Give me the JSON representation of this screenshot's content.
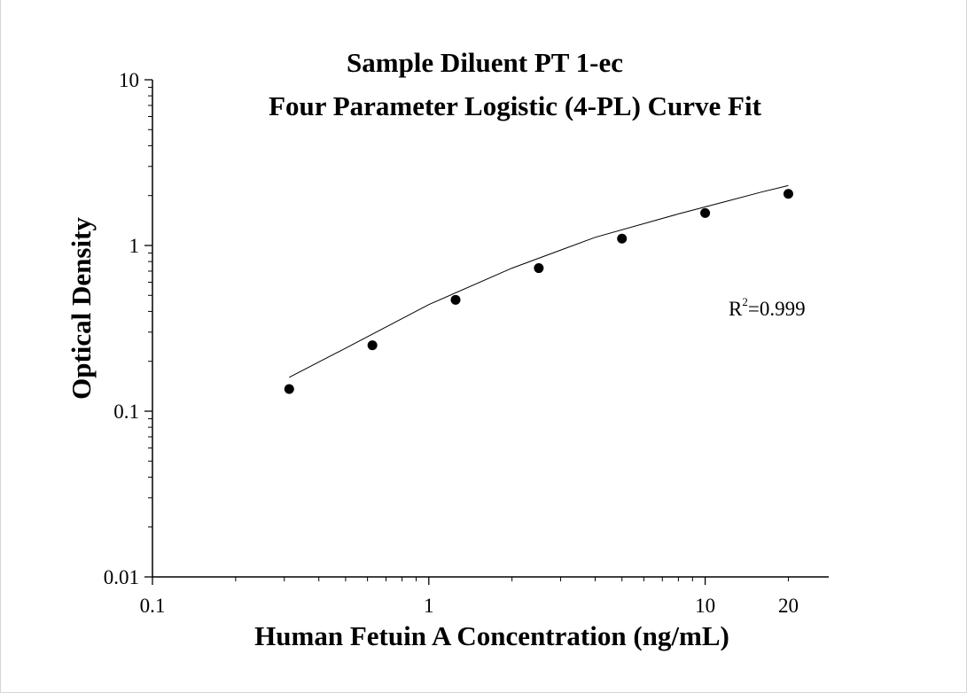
{
  "chart_data": {
    "type": "scatter",
    "title": "Sample Diluent PT 1-ec",
    "subtitle": "Four Parameter Logistic (4-PL) Curve Fit",
    "xlabel": "Human Fetuin A Concentration (ng/mL)",
    "ylabel": "Optical Density",
    "x_scale": "log",
    "y_scale": "log",
    "xlim": [
      0.1,
      28
    ],
    "ylim": [
      0.01,
      10
    ],
    "x_ticks": [
      "0.1",
      "1",
      "10",
      "20"
    ],
    "y_ticks": [
      "0.01",
      "0.1",
      "1",
      "10"
    ],
    "grid": false,
    "series": [
      {
        "x": [
          0.3125,
          0.625,
          1.25,
          2.5,
          5,
          10,
          20
        ],
        "y": [
          0.136,
          0.25,
          0.47,
          0.73,
          1.1,
          1.57,
          2.05
        ]
      }
    ],
    "fit_curve": {
      "x": [
        0.3125,
        0.5,
        1,
        2,
        4,
        8,
        12,
        16,
        20
      ],
      "y": [
        0.16,
        0.24,
        0.44,
        0.73,
        1.12,
        1.55,
        1.85,
        2.1,
        2.3
      ]
    },
    "annotation": {
      "base": "R",
      "sup": "2",
      "text": "=0.999"
    }
  }
}
